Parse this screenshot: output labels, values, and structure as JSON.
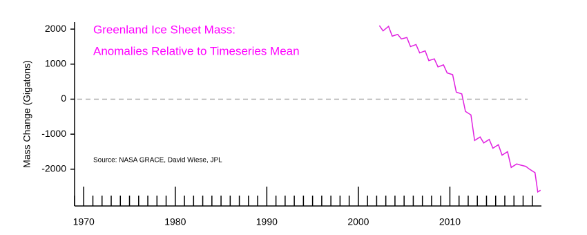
{
  "chart_data": {
    "type": "line",
    "title": "Greenland Ice Sheet Mass:",
    "subtitle": "Anomalies Relative to Timeseries Mean",
    "annotation": "Source: NASA GRACE, David Wiese, JPL",
    "y_label": "Mass Change (Gigatons)",
    "series": [
      {
        "name": "Greenland Ice Sheet Mass",
        "color": "#e020e0",
        "x": [
          2002.3,
          2002.7,
          2003.3,
          2003.7,
          2004.3,
          2004.7,
          2005.3,
          2005.7,
          2006.3,
          2006.7,
          2007.3,
          2007.7,
          2008.3,
          2008.7,
          2009.3,
          2009.7,
          2010.3,
          2010.7,
          2011.3,
          2011.7,
          2012.3,
          2012.7,
          2013.3,
          2013.7,
          2014.3,
          2014.7,
          2015.3,
          2015.7,
          2016.3,
          2016.7,
          2017.3,
          2017.7,
          2018.3,
          2018.7,
          2019.3,
          2019.6,
          2019.9
        ],
        "values": [
          2100,
          1950,
          2080,
          1800,
          1850,
          1720,
          1760,
          1500,
          1560,
          1320,
          1380,
          1100,
          1150,
          920,
          980,
          750,
          700,
          200,
          150,
          -350,
          -450,
          -1180,
          -1080,
          -1250,
          -1150,
          -1400,
          -1300,
          -1600,
          -1500,
          -1950,
          -1850,
          -1880,
          -1920,
          -2000,
          -2100,
          -2650,
          -2600
        ]
      }
    ],
    "xlim": [
      1969,
      2020
    ],
    "ylim": [
      -3050,
      2200
    ],
    "xticks": [
      1970,
      1980,
      1990,
      2000,
      2010
    ],
    "xminorticks": [
      1969,
      1971,
      1972,
      1973,
      1974,
      1975,
      1976,
      1977,
      1978,
      1979,
      1981,
      1982,
      1983,
      1984,
      1985,
      1986,
      1987,
      1988,
      1989,
      1991,
      1992,
      1993,
      1994,
      1995,
      1996,
      1997,
      1998,
      1999,
      2001,
      2002,
      2003,
      2004,
      2005,
      2006,
      2007,
      2008,
      2009,
      2011,
      2012,
      2013,
      2014,
      2015,
      2016,
      2017,
      2018,
      2019
    ],
    "yticks": [
      -2000,
      -1000,
      0,
      1000,
      2000
    ],
    "zero_line": true,
    "title_color": "#ff00ff"
  }
}
